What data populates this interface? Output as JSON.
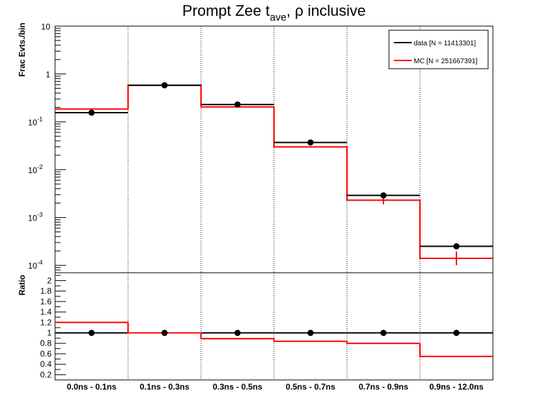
{
  "chart_data": {
    "type": "histogram",
    "title_main": "Prompt Zee t",
    "title_sub": "ave",
    "title_rest": ",  ρ inclusive",
    "categories": [
      "0.0ns - 0.1ns",
      "0.1ns - 0.3ns",
      "0.3ns - 0.5ns",
      "0.5ns - 0.7ns",
      "0.7ns - 0.9ns",
      "0.9ns - 12.0ns"
    ],
    "top": {
      "ylabel": "Frac Evts./bin",
      "yscale": "log",
      "ylim": [
        7e-05,
        10
      ],
      "ytick_labels": [
        {
          "base": "10",
          "exp": "-4",
          "value": 0.0001
        },
        {
          "base": "10",
          "exp": "-3",
          "value": 0.001
        },
        {
          "base": "10",
          "exp": "-2",
          "value": 0.01
        },
        {
          "base": "10",
          "exp": "-1",
          "value": 0.1
        },
        {
          "base": "1",
          "exp": "",
          "value": 1
        },
        {
          "base": "10",
          "exp": "",
          "value": 10
        }
      ],
      "series": [
        {
          "name": "data [N = 11413301]",
          "color": "#000000",
          "values": [
            0.155,
            0.58,
            0.23,
            0.037,
            0.0029,
            0.00025
          ]
        },
        {
          "name": "MC [N = 251667391]",
          "color": "#ff0000",
          "values": [
            0.185,
            0.58,
            0.205,
            0.03,
            0.0023,
            0.00014
          ]
        }
      ]
    },
    "bottom": {
      "ylabel": "Ratio",
      "ylim": [
        0.1,
        2.15
      ],
      "ytick_labels": [
        "0.2",
        "0.4",
        "0.6",
        "0.8",
        "1",
        "1.2",
        "1.4",
        "1.6",
        "1.8",
        "2"
      ],
      "series": [
        {
          "name": "data",
          "color": "#000000",
          "values": [
            1,
            1,
            1,
            1,
            1,
            1
          ]
        },
        {
          "name": "MC",
          "color": "#ff0000",
          "values": [
            1.2,
            1.0,
            0.89,
            0.84,
            0.8,
            0.55
          ]
        }
      ]
    },
    "grid_x": "dotted",
    "legend_position": "top-right"
  }
}
